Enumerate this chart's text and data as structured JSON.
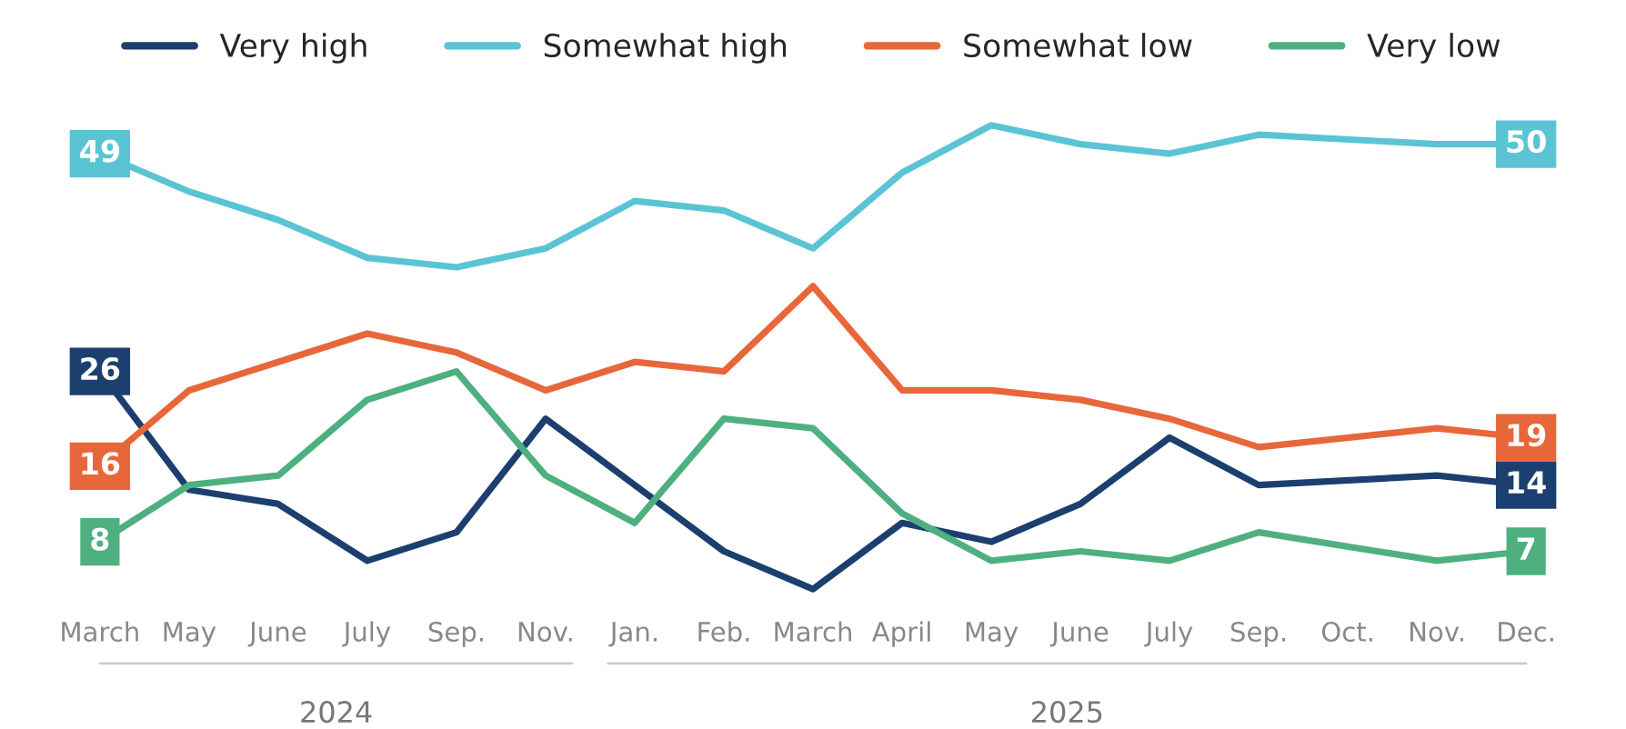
{
  "chart_data": {
    "type": "line",
    "categories": [
      "March",
      "May",
      "June",
      "July",
      "Sep.",
      "Nov.",
      "Jan.",
      "Feb.",
      "March",
      "April",
      "May",
      "June",
      "July",
      "Sep.",
      "Oct.",
      "Nov.",
      "Dec."
    ],
    "series": [
      {
        "name": "Very high",
        "color": "#1b3f6e",
        "values": [
          26,
          13.5,
          12,
          6,
          9,
          21,
          14,
          7,
          3,
          10,
          8,
          12,
          19,
          14,
          null,
          15,
          14
        ],
        "value_labels": [
          "26",
          null,
          null,
          null,
          null,
          null,
          null,
          null,
          null,
          null,
          null,
          null,
          null,
          null,
          null,
          null,
          "14"
        ]
      },
      {
        "name": "Somewhat high",
        "color": "#5bc4d4",
        "values": [
          49,
          45,
          42,
          38,
          37,
          39,
          44,
          43,
          39,
          47,
          52,
          50,
          49,
          51,
          null,
          50,
          50
        ],
        "value_labels": [
          "49",
          null,
          null,
          null,
          null,
          null,
          null,
          null,
          null,
          null,
          null,
          null,
          null,
          null,
          null,
          null,
          "50"
        ]
      },
      {
        "name": "Somewhat low",
        "color": "#e8673a",
        "values": [
          16,
          24,
          27,
          30,
          28,
          24,
          27,
          26,
          35,
          24,
          24,
          23,
          21,
          18,
          null,
          20,
          19
        ],
        "value_labels": [
          "16",
          null,
          null,
          null,
          null,
          null,
          null,
          null,
          null,
          null,
          null,
          null,
          null,
          null,
          null,
          null,
          "19"
        ]
      },
      {
        "name": "Very low",
        "color": "#4fb07f",
        "values": [
          8,
          14,
          15,
          23,
          26,
          15,
          10,
          21,
          20,
          11,
          6,
          7,
          6,
          9,
          null,
          6,
          7
        ],
        "value_labels": [
          "8",
          null,
          null,
          null,
          null,
          null,
          null,
          null,
          null,
          null,
          null,
          null,
          null,
          null,
          null,
          null,
          "7"
        ]
      }
    ],
    "annotations": [
      "2024",
      "2025"
    ],
    "legend": "top",
    "grid": false,
    "marker": "none",
    "line_style": "solid"
  }
}
